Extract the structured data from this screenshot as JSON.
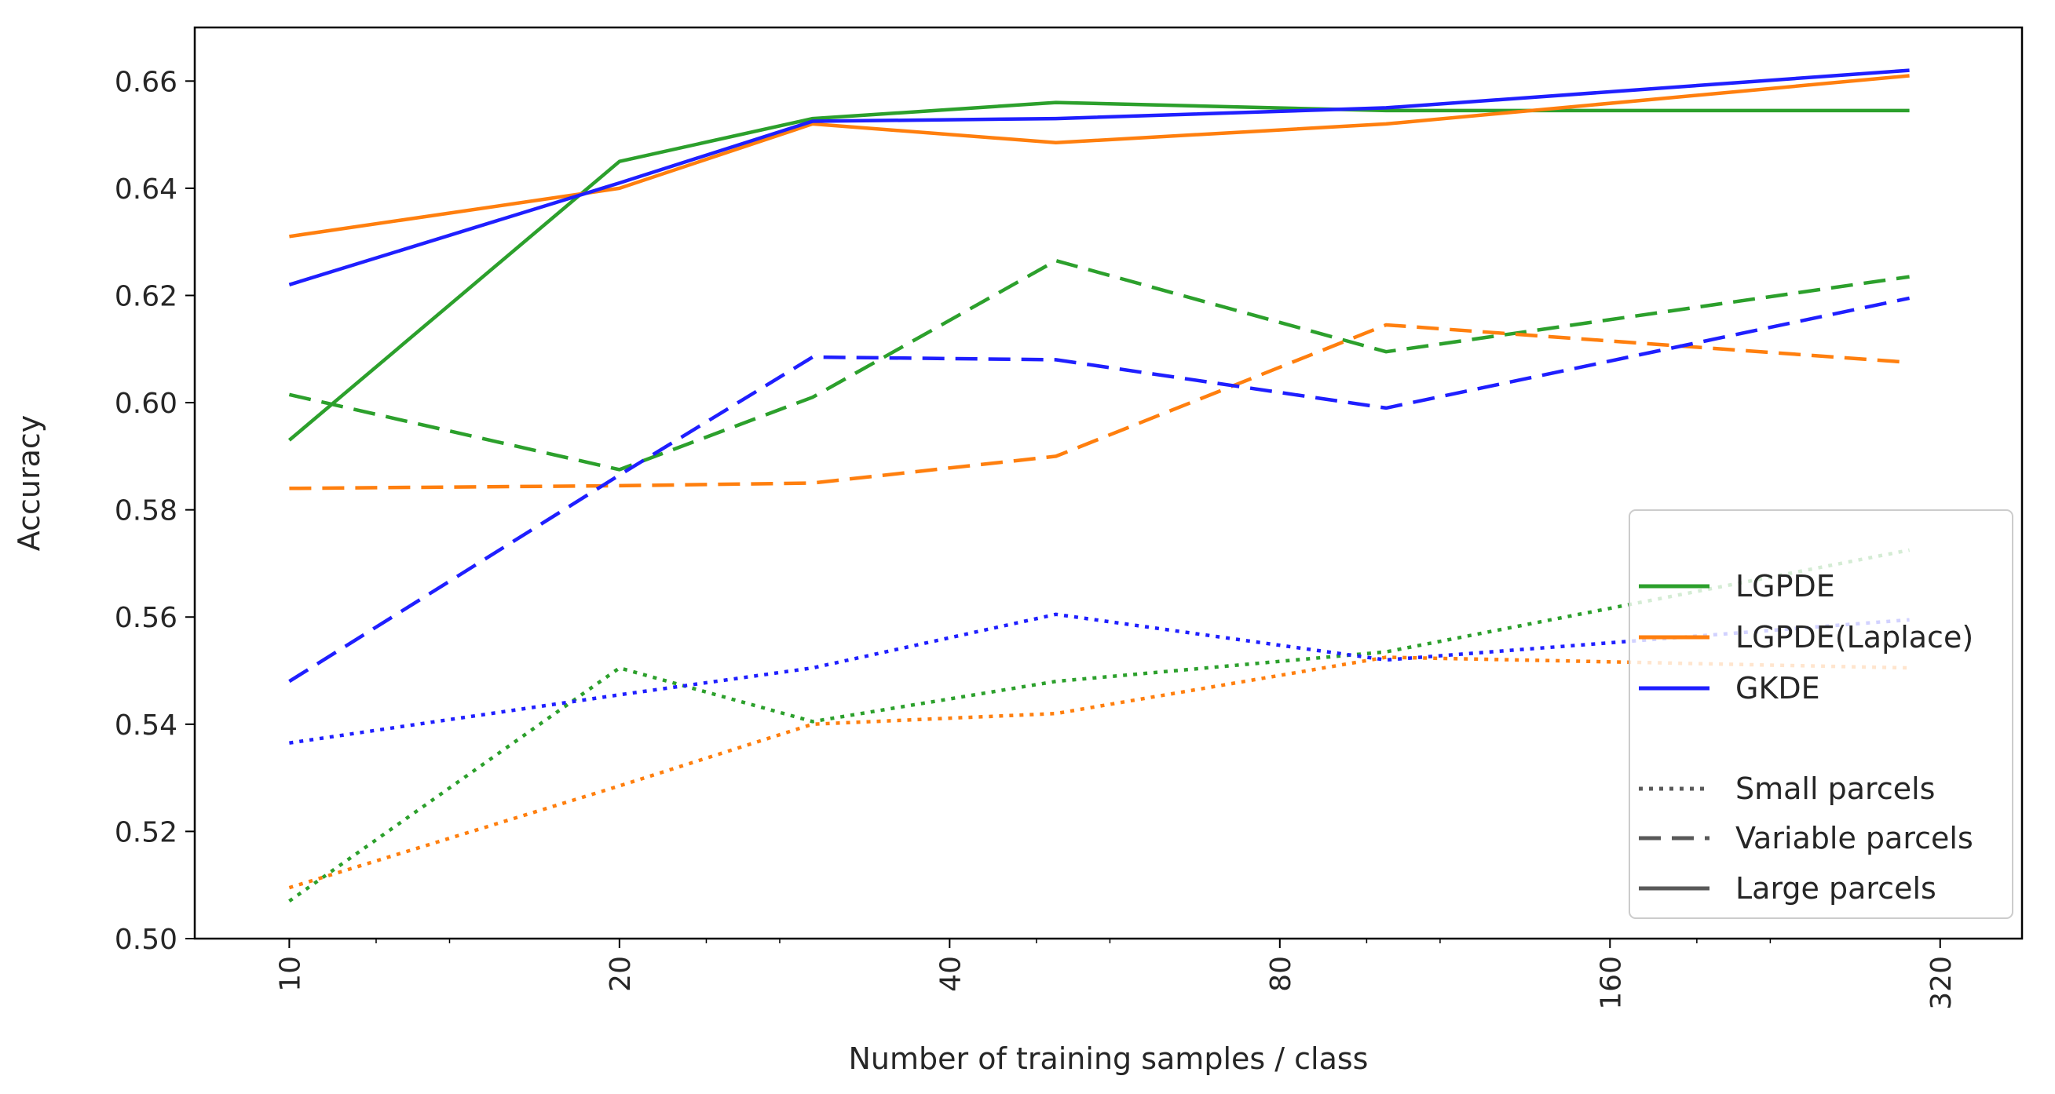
{
  "chart_data": {
    "type": "line",
    "title": "",
    "xlabel": "Number of training samples / class",
    "ylabel": "Accuracy",
    "xscale": "log2",
    "xlim": [
      8.2,
      380
    ],
    "ylim": [
      0.5,
      0.67
    ],
    "xticks": [
      10,
      20,
      40,
      80,
      160,
      320
    ],
    "xtick_labels": [
      "10",
      "20",
      "40",
      "80",
      "160",
      "320"
    ],
    "yticks": [
      0.5,
      0.52,
      0.54,
      0.56,
      0.58,
      0.6,
      0.62,
      0.64,
      0.66
    ],
    "ytick_labels": [
      "0.50",
      "0.52",
      "0.54",
      "0.56",
      "0.58",
      "0.60",
      "0.62",
      "0.64",
      "0.66"
    ],
    "x": [
      10,
      20,
      30,
      50,
      100,
      300
    ],
    "grid": false,
    "legend_position": "lower-right",
    "methods": [
      {
        "name": "LGPDE",
        "color": "#2ca02c"
      },
      {
        "name": "LGPDE(Laplace)",
        "color": "#ff7f0e"
      },
      {
        "name": "GKDE",
        "color": "#1f1fff"
      }
    ],
    "styles": [
      {
        "name": "Small parcels",
        "dash": "dotted"
      },
      {
        "name": "Variable parcels",
        "dash": "dashed"
      },
      {
        "name": "Large parcels",
        "dash": "solid"
      }
    ],
    "series": [
      {
        "name": "LGPDE - Large parcels",
        "method": 0,
        "style": 2,
        "values": [
          0.593,
          0.645,
          0.653,
          0.656,
          0.6545,
          0.6545
        ]
      },
      {
        "name": "LGPDE(Laplace) - Large parcels",
        "method": 1,
        "style": 2,
        "values": [
          0.631,
          0.64,
          0.652,
          0.6485,
          0.652,
          0.661
        ]
      },
      {
        "name": "GKDE - Large parcels",
        "method": 2,
        "style": 2,
        "values": [
          0.622,
          0.641,
          0.6525,
          0.653,
          0.655,
          0.662
        ]
      },
      {
        "name": "LGPDE - Variable parcels",
        "method": 0,
        "style": 1,
        "values": [
          0.6015,
          0.5875,
          0.601,
          0.6265,
          0.6095,
          0.6235
        ]
      },
      {
        "name": "LGPDE(Laplace) - Variable parcels",
        "method": 1,
        "style": 1,
        "values": [
          0.584,
          0.5845,
          0.585,
          0.59,
          0.6145,
          0.6075
        ]
      },
      {
        "name": "GKDE - Variable parcels",
        "method": 2,
        "style": 1,
        "values": [
          0.548,
          0.5865,
          0.6085,
          0.608,
          0.599,
          0.6195
        ]
      },
      {
        "name": "LGPDE - Small parcels",
        "method": 0,
        "style": 0,
        "values": [
          0.507,
          0.5505,
          0.5405,
          0.548,
          0.5535,
          0.5725
        ]
      },
      {
        "name": "LGPDE(Laplace) - Small parcels",
        "method": 1,
        "style": 0,
        "values": [
          0.5095,
          0.5285,
          0.54,
          0.542,
          0.5525,
          0.5505
        ]
      },
      {
        "name": "GKDE - Small parcels",
        "method": 2,
        "style": 0,
        "values": [
          0.5365,
          0.5455,
          0.5505,
          0.5605,
          0.552,
          0.5595
        ]
      }
    ]
  }
}
